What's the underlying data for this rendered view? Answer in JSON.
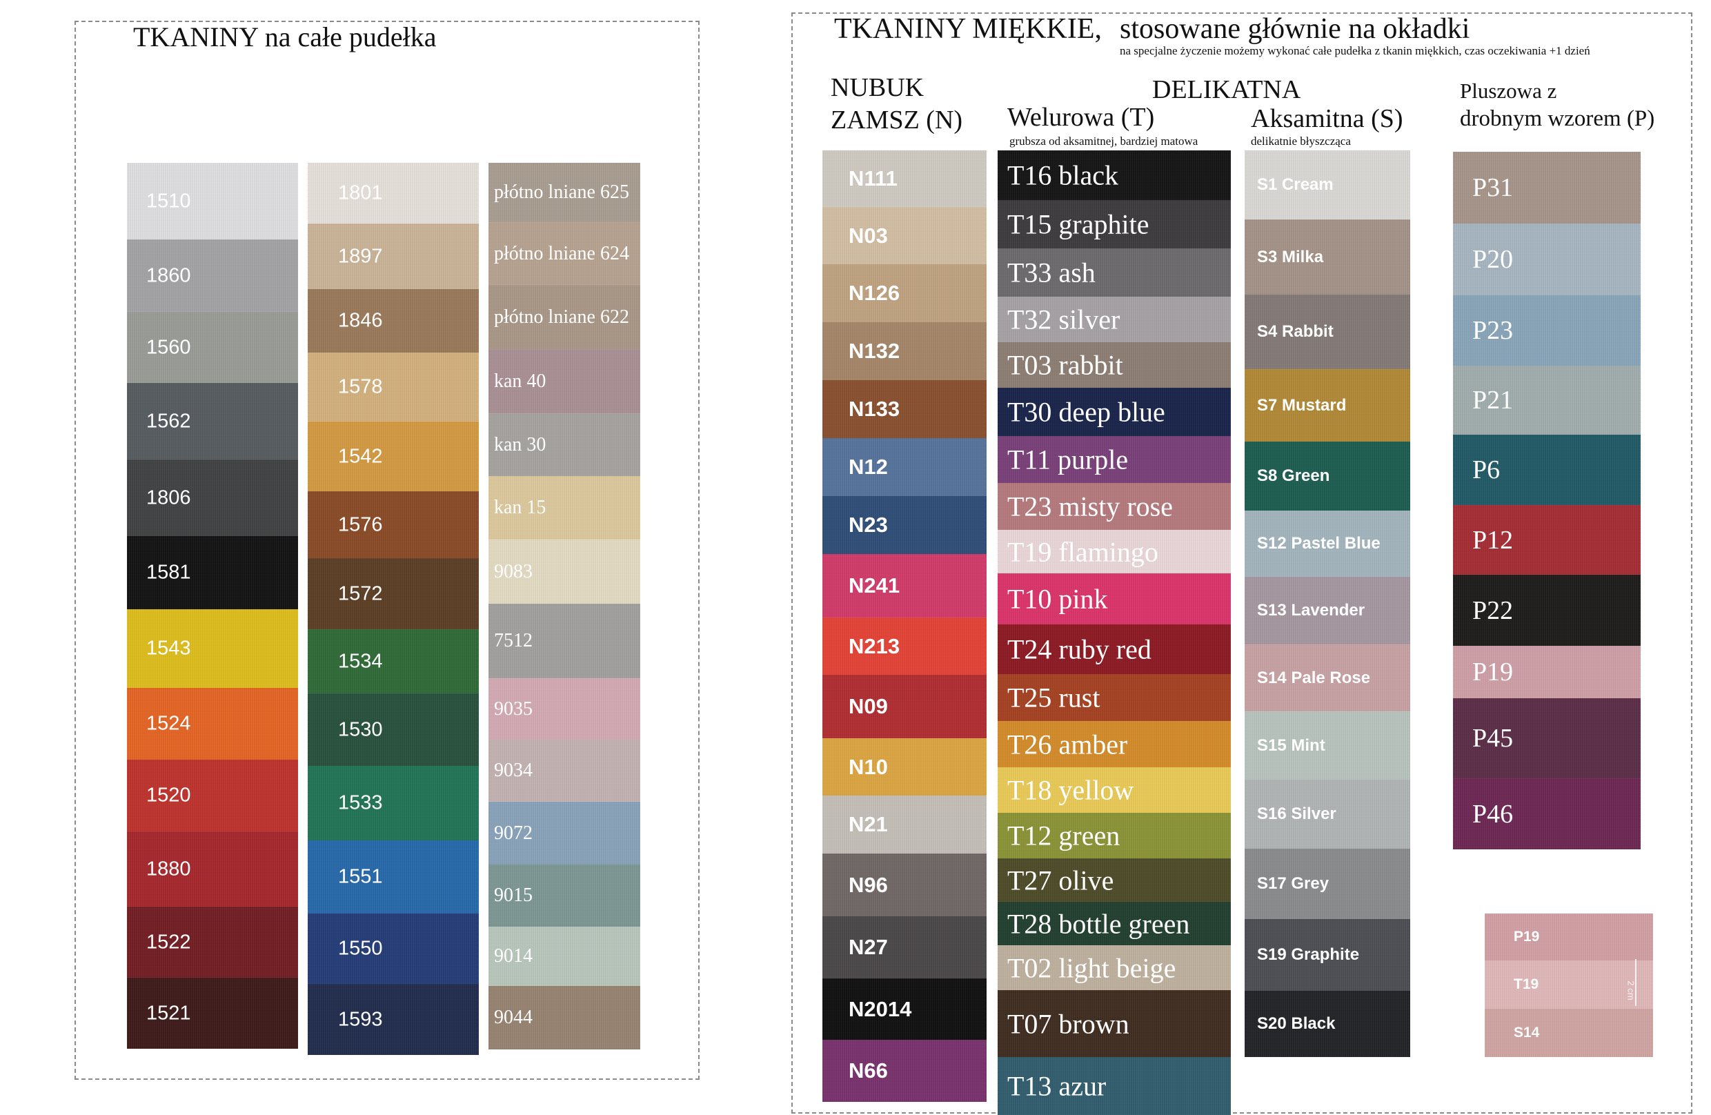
{
  "left": {
    "title": "TKANINY na całe pudełka",
    "col1": [
      {
        "label": "1510",
        "color": "#e4e4e6"
      },
      {
        "label": "1860",
        "color": "#a6a6a8"
      },
      {
        "label": "1560",
        "color": "#9c9e99"
      },
      {
        "label": "1562",
        "color": "#555b60"
      },
      {
        "label": "1806",
        "color": "#404142"
      },
      {
        "label": "1581",
        "color": "#0f0f10"
      },
      {
        "label": "1543",
        "color": "#e3c219"
      },
      {
        "label": "1524",
        "color": "#ea6521"
      },
      {
        "label": "1520",
        "color": "#c3302b"
      },
      {
        "label": "1880",
        "color": "#a9242a"
      },
      {
        "label": "1522",
        "color": "#731a20"
      },
      {
        "label": "1521",
        "color": "#3b1716"
      }
    ],
    "col2": [
      {
        "label": "1801",
        "color": "#ebe6df"
      },
      {
        "label": "1897",
        "color": "#cfb79a"
      },
      {
        "label": "1846",
        "color": "#9d7a5a"
      },
      {
        "label": "1578",
        "color": "#d9b47f"
      },
      {
        "label": "1542",
        "color": "#d99c3f"
      },
      {
        "label": "1576",
        "color": "#8c4a24"
      },
      {
        "label": "1572",
        "color": "#5b3c22"
      },
      {
        "label": "1534",
        "color": "#2e6a35"
      },
      {
        "label": "1530",
        "color": "#24503a"
      },
      {
        "label": "1533",
        "color": "#1f7556"
      },
      {
        "label": "1551",
        "color": "#2469ad"
      },
      {
        "label": "1550",
        "color": "#223a78"
      },
      {
        "label": "1593",
        "color": "#1e2a4c"
      }
    ],
    "col3": [
      {
        "label": "płótno lniane 625",
        "color": "#ada094"
      },
      {
        "label": "płótno lniane 624",
        "color": "#bba593"
      },
      {
        "label": "płótno lniane 622",
        "color": "#ad9a89"
      },
      {
        "label": "kan 40",
        "color": "#ad9296"
      },
      {
        "label": "kan 30",
        "color": "#a9a6a3"
      },
      {
        "label": "kan 15",
        "color": "#e2cd9f"
      },
      {
        "label": "9083",
        "color": "#e9e0c7"
      },
      {
        "label": "7512",
        "color": "#a4a3a2"
      },
      {
        "label": "9035",
        "color": "#d9adb7"
      },
      {
        "label": "9034",
        "color": "#c8b5b5"
      },
      {
        "label": "9072",
        "color": "#8ba5bc"
      },
      {
        "label": "9015",
        "color": "#7e9a96"
      },
      {
        "label": "9014",
        "color": "#bccbc0"
      },
      {
        "label": "9044",
        "color": "#998472"
      }
    ]
  },
  "right": {
    "title_main": "TKANINY MIĘKKIE,",
    "title_sub": "stosowane głównie na okładki",
    "title_note": "na specjalne życzenie możemy wykonać całe pudełka z tkanin miękkich, czas oczekiwania +1 dzień",
    "nubuk_head_1": "NUBUK",
    "nubuk_head_2": "ZAMSZ (N)",
    "delikatna_head": "DELIKATNA",
    "welur_head": "Welurowa (T)",
    "welur_note": "grubsza od aksamitnej, bardziej matowa",
    "aksamit_head": "Aksamitna (S)",
    "aksamit_note": "delikatnie błyszcząca",
    "plusz_head_1": "Pluszowa z",
    "plusz_head_2": "drobnym wzorem (P)",
    "nubuk": [
      {
        "label": "N111",
        "color": "#d4cfc6"
      },
      {
        "label": "N03",
        "color": "#d7c2a7"
      },
      {
        "label": "N126",
        "color": "#c4a582"
      },
      {
        "label": "N132",
        "color": "#a88769"
      },
      {
        "label": "N133",
        "color": "#8a4f2d"
      },
      {
        "label": "N12",
        "color": "#55749d"
      },
      {
        "label": "N23",
        "color": "#2c4c78"
      },
      {
        "label": "N241",
        "color": "#d6396a"
      },
      {
        "label": "N213",
        "color": "#e94233"
      },
      {
        "label": "N09",
        "color": "#b42b30"
      },
      {
        "label": "N10",
        "color": "#e2a83f"
      },
      {
        "label": "N21",
        "color": "#c8c4bb"
      },
      {
        "label": "N96",
        "color": "#716866"
      },
      {
        "label": "N27",
        "color": "#4a4647"
      },
      {
        "label": "N2014",
        "color": "#0c0c0c"
      },
      {
        "label": "N66",
        "color": "#7a2f6c"
      }
    ],
    "welur": [
      {
        "label": "T16 black",
        "color": "#111111",
        "text": "#ffffff"
      },
      {
        "label": "T15 graphite",
        "color": "#3b393b",
        "text": "#ffffff"
      },
      {
        "label": "T33 ash",
        "color": "#6c6a6d",
        "text": "#ffffff"
      },
      {
        "label": "T32 silver",
        "color": "#a9a4a9",
        "text": "#ffffff"
      },
      {
        "label": "T03 rabbit",
        "color": "#8f7f74",
        "text": "#ffffff"
      },
      {
        "label": "T30 deep blue",
        "color": "#16214a",
        "text": "#ffffff"
      },
      {
        "label": "T11 purple",
        "color": "#7a3e7a",
        "text": "#ffffff"
      },
      {
        "label": "T23 misty rose",
        "color": "#b97b7e",
        "text": "#ffffff"
      },
      {
        "label": "T19 flamingo",
        "color": "#f0dcde",
        "text": "#ffffff"
      },
      {
        "label": "T10 pink",
        "color": "#e2316b",
        "text": "#ffffff"
      },
      {
        "label": "T24 ruby red",
        "color": "#8e1620",
        "text": "#ffffff"
      },
      {
        "label": "T25 rust",
        "color": "#a8401f",
        "text": "#ffffff"
      },
      {
        "label": "T26 amber",
        "color": "#d98d26",
        "text": "#ffffff"
      },
      {
        "label": "T18 yellow",
        "color": "#f0cf56",
        "text": "#ffffff"
      },
      {
        "label": "T12 green",
        "color": "#8c9534",
        "text": "#ffffff"
      },
      {
        "label": "T27 olive",
        "color": "#4c4a24",
        "text": "#ffffff"
      },
      {
        "label": "T28 bottle green",
        "color": "#1d3d2c",
        "text": "#ffffff"
      },
      {
        "label": "T02 light beige",
        "color": "#c2b4a0",
        "text": "#ffffff"
      },
      {
        "label": "T07 brown",
        "color": "#3e2a1d",
        "text": "#ffffff"
      },
      {
        "label": "T13 azur",
        "color": "#2f5d6e",
        "text": "#ffffff"
      }
    ],
    "aksamit": [
      {
        "label": "S1 Cream",
        "color": "#dfdedb"
      },
      {
        "label": "S3 Milka",
        "color": "#a89589"
      },
      {
        "label": "S4 Rabbit",
        "color": "#857a78"
      },
      {
        "label": "S7 Mustard",
        "color": "#b58a34"
      },
      {
        "label": "S8 Green",
        "color": "#195d50"
      },
      {
        "label": "S12 Pastel Blue",
        "color": "#a6b8c1"
      },
      {
        "label": "S13 Lavender",
        "color": "#a99aa3"
      },
      {
        "label": "S14 Pale Rose",
        "color": "#cca4a7"
      },
      {
        "label": "S15 Mint",
        "color": "#bcc8c2"
      },
      {
        "label": "S16 Silver",
        "color": "#b5b8b8"
      },
      {
        "label": "S17 Grey",
        "color": "#8b8d8f"
      },
      {
        "label": "S19 Graphite",
        "color": "#4b4d52"
      },
      {
        "label": "S20 Black",
        "color": "#1e2024"
      }
    ],
    "plusz": [
      {
        "label": "P31",
        "color": "#aa978c"
      },
      {
        "label": "P20",
        "color": "#aab9c6"
      },
      {
        "label": "P23",
        "color": "#8aa8bd"
      },
      {
        "label": "P21",
        "color": "#a2b1b0"
      },
      {
        "label": "P6",
        "color": "#1d5a66"
      },
      {
        "label": "P12",
        "color": "#a82a32"
      },
      {
        "label": "P22",
        "color": "#1b1818"
      },
      {
        "label": "P19",
        "color": "#d3a1a9"
      },
      {
        "label": "P45",
        "color": "#5b2b45"
      },
      {
        "label": "P46",
        "color": "#6d2453"
      }
    ],
    "compare": [
      {
        "label": "P19",
        "color": "#d6a2a8"
      },
      {
        "label": "T19",
        "color": "#e6bcbc"
      },
      {
        "label": "S14",
        "color": "#d4a8a6"
      }
    ],
    "compare_scale": "2 cm"
  }
}
